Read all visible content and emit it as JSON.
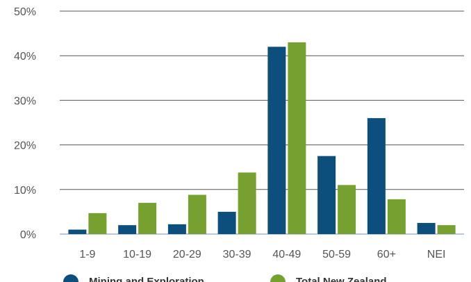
{
  "chart_data": {
    "type": "bar",
    "categories": [
      "1-9",
      "10-19",
      "20-29",
      "30-39",
      "40-49",
      "50-59",
      "60+",
      "NEI"
    ],
    "series": [
      {
        "name": "Mining and Exploration",
        "color": "#0d4f7c",
        "values": [
          1.0,
          2.0,
          2.2,
          5.0,
          42.0,
          17.5,
          26.0,
          2.5
        ]
      },
      {
        "name": "Total New Zealand",
        "color": "#76a12f",
        "values": [
          4.7,
          7.0,
          8.8,
          13.8,
          43.0,
          11.0,
          7.8,
          2.0
        ]
      }
    ],
    "yticks": [
      "0%",
      "10%",
      "20%",
      "30%",
      "40%",
      "50%"
    ],
    "ylim": [
      0,
      50
    ],
    "grid": true,
    "legend_position": "bottom",
    "xlabel": "",
    "ylabel": "",
    "title": ""
  }
}
